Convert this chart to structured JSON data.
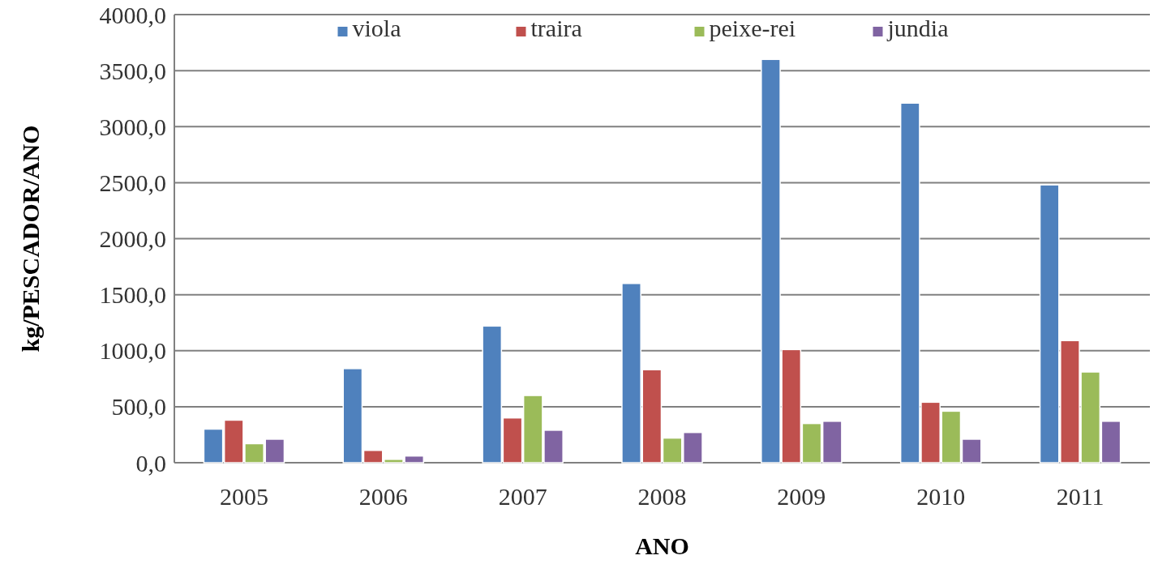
{
  "chart_data": {
    "type": "bar",
    "xlabel": "ANO",
    "ylabel": "kg/PESCADOR/ANO",
    "categories": [
      "2005",
      "2006",
      "2007",
      "2008",
      "2009",
      "2010",
      "2011"
    ],
    "series": [
      {
        "name": "viola",
        "color": "#4f81bd",
        "values": [
          300,
          840,
          1220,
          1600,
          3600,
          3210,
          2480
        ]
      },
      {
        "name": "traira",
        "color": "#c0504d",
        "values": [
          380,
          110,
          400,
          830,
          1010,
          540,
          1090
        ]
      },
      {
        "name": "peixe-rei",
        "color": "#9bbb59",
        "values": [
          170,
          30,
          600,
          220,
          350,
          460,
          810
        ]
      },
      {
        "name": "jundia",
        "color": "#8064a2",
        "values": [
          210,
          60,
          290,
          270,
          370,
          210,
          370
        ]
      }
    ],
    "ylim": [
      0,
      4000
    ],
    "yticks": [
      {
        "value": 0,
        "label": "0,0"
      },
      {
        "value": 500,
        "label": "500,0"
      },
      {
        "value": 1000,
        "label": "1000,0"
      },
      {
        "value": 1500,
        "label": "1500,0"
      },
      {
        "value": 2000,
        "label": "2000,0"
      },
      {
        "value": 2500,
        "label": "2500,0"
      },
      {
        "value": 3000,
        "label": "3000,0"
      },
      {
        "value": 3500,
        "label": "3500,0"
      },
      {
        "value": 4000,
        "label": "4000,0"
      }
    ],
    "grid": "y",
    "legend": "top"
  }
}
